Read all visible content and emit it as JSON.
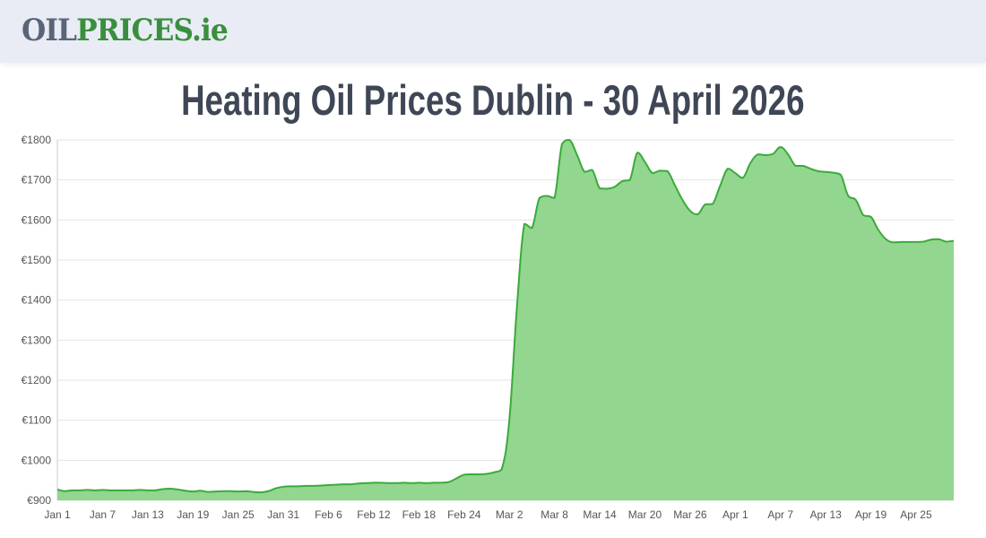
{
  "header": {
    "logo": {
      "part1": "OIL",
      "part2": "PRICES",
      "part3": ".ie"
    }
  },
  "page_title": "Heating Oil Prices Dublin - 30 April 2026",
  "colors": {
    "fill": "#93d68f",
    "line": "#3aab3a",
    "grid": "#e2e2e2",
    "title": "#3f4756"
  },
  "chart_data": {
    "type": "area",
    "title": "",
    "xlabel": "",
    "ylabel": "",
    "ylim": [
      900,
      1800
    ],
    "yticks": [
      900,
      1000,
      1100,
      1200,
      1300,
      1400,
      1500,
      1600,
      1700,
      1800
    ],
    "ytick_labels": [
      "€900",
      "€1000",
      "€1100",
      "€1200",
      "€1300",
      "€1400",
      "€1500",
      "€1600",
      "€1700",
      "€1800"
    ],
    "x_range": [
      "Jan 1",
      "Apr 30"
    ],
    "xtick_labels": [
      "Jan 1",
      "Jan 7",
      "Jan 13",
      "Jan 19",
      "Jan 25",
      "Jan 31",
      "Feb 6",
      "Feb 12",
      "Feb 18",
      "Feb 24",
      "Mar 2",
      "Mar 8",
      "Mar 14",
      "Mar 20",
      "Mar 26",
      "Apr 1",
      "Apr 7",
      "Apr 13",
      "Apr 19",
      "Apr 25"
    ],
    "grid": true,
    "legend": "none",
    "daily_values_from_jan_1": [
      927,
      923,
      925,
      925,
      926,
      925,
      926,
      925,
      925,
      925,
      925,
      926,
      925,
      925,
      928,
      929,
      927,
      924,
      922,
      924,
      921,
      922,
      923,
      923,
      922,
      923,
      921,
      920,
      923,
      930,
      934,
      935,
      935,
      936,
      936,
      937,
      938,
      939,
      940,
      940,
      942,
      943,
      944,
      944,
      943,
      943,
      944,
      943,
      944,
      943,
      944,
      944,
      946,
      955,
      964,
      965,
      965,
      966,
      970,
      978,
      1100,
      1380,
      1590,
      1580,
      1655,
      1660,
      1655,
      1790,
      1800,
      1762,
      1720,
      1725,
      1679,
      1678,
      1683,
      1697,
      1700,
      1768,
      1745,
      1717,
      1723,
      1722,
      1686,
      1650,
      1623,
      1614,
      1639,
      1640,
      1686,
      1728,
      1717,
      1705,
      1742,
      1764,
      1762,
      1765,
      1782,
      1764,
      1735,
      1735,
      1728,
      1722,
      1720,
      1718,
      1713,
      1660,
      1650,
      1612,
      1608,
      1575,
      1552,
      1544,
      1545,
      1545,
      1545,
      1546,
      1551,
      1552,
      1546,
      1548
    ]
  }
}
